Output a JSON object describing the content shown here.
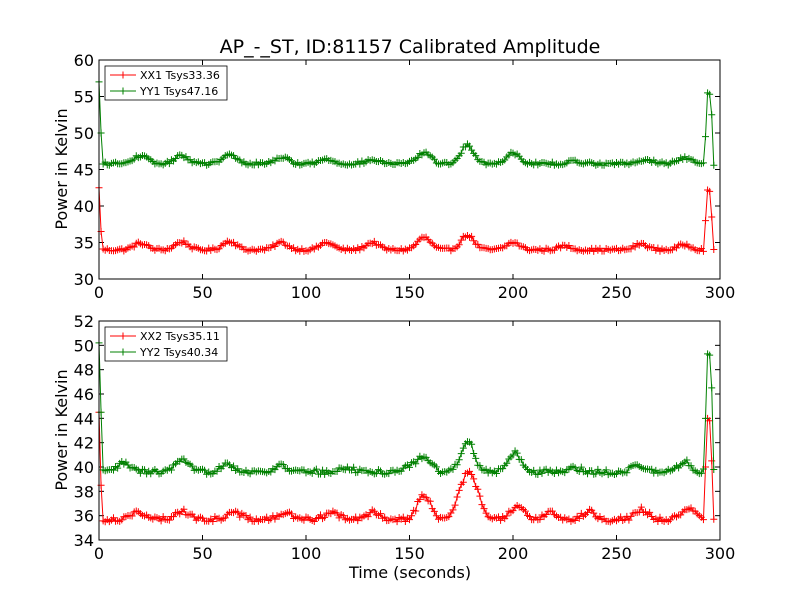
{
  "chart_data": [
    {
      "type": "line",
      "title": "AP_-_ST, ID:81157 Calibrated Amplitude",
      "xlabel": "",
      "ylabel": "Power in Kelvin",
      "xlim": [
        0,
        300
      ],
      "ylim": [
        30,
        60
      ],
      "xticks": [
        "0",
        "50",
        "100",
        "150",
        "200",
        "250",
        "300"
      ],
      "yticks": [
        "30",
        "35",
        "40",
        "45",
        "50",
        "55",
        "60"
      ],
      "grid": false,
      "legend": "top-left",
      "series": [
        {
          "name": "XX1 Tsys33.36",
          "color": "#ff0000",
          "marker": "+",
          "baseline": 34.0,
          "bumps": [
            {
              "c": 20,
              "a": 0.9
            },
            {
              "c": 40,
              "a": 1.1
            },
            {
              "c": 63,
              "a": 1.2
            },
            {
              "c": 88,
              "a": 1.0
            },
            {
              "c": 110,
              "a": 1.0
            },
            {
              "c": 132,
              "a": 1.0
            },
            {
              "c": 157,
              "a": 1.7
            },
            {
              "c": 178,
              "a": 2.0
            },
            {
              "c": 200,
              "a": 1.0
            },
            {
              "c": 225,
              "a": 0.5
            },
            {
              "c": 262,
              "a": 0.8
            },
            {
              "c": 283,
              "a": 0.7
            }
          ],
          "spikes": [
            {
              "x": 0,
              "y": 42.5
            },
            {
              "x": 1,
              "y": 36.5
            },
            {
              "x": 293,
              "y": 38.0
            },
            {
              "x": 294,
              "y": 42.2
            },
            {
              "x": 295,
              "y": 42.0
            },
            {
              "x": 296,
              "y": 38.5
            }
          ]
        },
        {
          "name": "YY1 Tsys47.16",
          "color": "#008000",
          "marker": "+",
          "baseline": 45.8,
          "bumps": [
            {
              "c": 20,
              "a": 1.1
            },
            {
              "c": 40,
              "a": 1.1
            },
            {
              "c": 63,
              "a": 1.2
            },
            {
              "c": 88,
              "a": 0.9
            },
            {
              "c": 110,
              "a": 0.6
            },
            {
              "c": 132,
              "a": 0.5
            },
            {
              "c": 157,
              "a": 1.5
            },
            {
              "c": 178,
              "a": 2.5
            },
            {
              "c": 200,
              "a": 1.5
            },
            {
              "c": 230,
              "a": 0.3
            },
            {
              "c": 264,
              "a": 0.6
            },
            {
              "c": 283,
              "a": 0.8
            }
          ],
          "spikes": [
            {
              "x": 0,
              "y": 57.0
            },
            {
              "x": 1,
              "y": 50.0
            },
            {
              "x": 293,
              "y": 49.5
            },
            {
              "x": 294,
              "y": 55.5
            },
            {
              "x": 295,
              "y": 55.3
            },
            {
              "x": 296,
              "y": 52.5
            }
          ]
        }
      ]
    },
    {
      "type": "line",
      "title": "",
      "xlabel": "Time (seconds)",
      "ylabel": "Power in Kelvin",
      "xlim": [
        0,
        300
      ],
      "ylim": [
        34,
        52
      ],
      "xticks": [
        "0",
        "50",
        "100",
        "150",
        "200",
        "250",
        "300"
      ],
      "yticks": [
        "34",
        "36",
        "38",
        "40",
        "42",
        "44",
        "46",
        "48",
        "50",
        "52"
      ],
      "grid": false,
      "legend": "top-left",
      "series": [
        {
          "name": "XX2 Tsys35.11",
          "color": "#ff0000",
          "marker": "+",
          "baseline": 35.7,
          "bumps": [
            {
              "c": 18,
              "a": 0.6
            },
            {
              "c": 40,
              "a": 0.7
            },
            {
              "c": 65,
              "a": 0.6
            },
            {
              "c": 90,
              "a": 0.5
            },
            {
              "c": 112,
              "a": 0.6
            },
            {
              "c": 133,
              "a": 0.6
            },
            {
              "c": 157,
              "a": 2.0
            },
            {
              "c": 176,
              "a": 2.5
            },
            {
              "c": 181,
              "a": 2.6
            },
            {
              "c": 202,
              "a": 1.0
            },
            {
              "c": 218,
              "a": 0.6
            },
            {
              "c": 237,
              "a": 0.6
            },
            {
              "c": 262,
              "a": 0.8
            },
            {
              "c": 285,
              "a": 0.8
            }
          ],
          "spikes": [
            {
              "x": 0,
              "y": 44.5
            },
            {
              "x": 1,
              "y": 38.5
            },
            {
              "x": 293,
              "y": 40.0
            },
            {
              "x": 294,
              "y": 44.0
            },
            {
              "x": 295,
              "y": 43.8
            },
            {
              "x": 296,
              "y": 40.5
            }
          ]
        },
        {
          "name": "YY2 Tsys40.34",
          "color": "#008000",
          "marker": "+",
          "baseline": 39.6,
          "bumps": [
            {
              "c": 12,
              "a": 0.7
            },
            {
              "c": 40,
              "a": 0.9
            },
            {
              "c": 62,
              "a": 0.7
            },
            {
              "c": 88,
              "a": 0.5
            },
            {
              "c": 120,
              "a": 0.3
            },
            {
              "c": 150,
              "a": 0.4
            },
            {
              "c": 157,
              "a": 1.3
            },
            {
              "c": 178,
              "a": 2.6
            },
            {
              "c": 201,
              "a": 1.5
            },
            {
              "c": 230,
              "a": 0.3
            },
            {
              "c": 260,
              "a": 0.5
            },
            {
              "c": 283,
              "a": 0.8
            }
          ],
          "spikes": [
            {
              "x": 0,
              "y": 50.2
            },
            {
              "x": 1,
              "y": 44.5
            },
            {
              "x": 293,
              "y": 44.0
            },
            {
              "x": 294,
              "y": 49.3
            },
            {
              "x": 295,
              "y": 49.2
            },
            {
              "x": 296,
              "y": 46.5
            }
          ]
        }
      ]
    }
  ]
}
